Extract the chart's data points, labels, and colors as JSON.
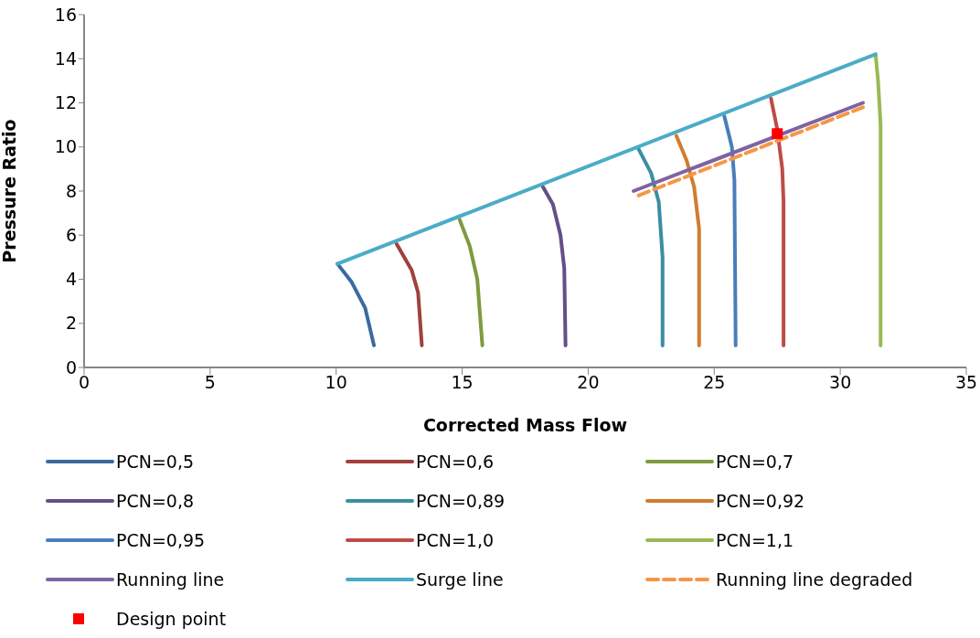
{
  "chart_data": {
    "type": "line",
    "xlabel": "Corrected Mass Flow",
    "ylabel": "Pressure Ratio",
    "xlim": [
      0,
      35
    ],
    "xticks": [
      0,
      5,
      10,
      15,
      20,
      25,
      30,
      35
    ],
    "ylim": [
      0,
      16
    ],
    "yticks": [
      0,
      2,
      4,
      6,
      8,
      10,
      12,
      14,
      16
    ],
    "grid": false,
    "legend": "bottom",
    "marker": "none",
    "line_style": "solid",
    "series": [
      {
        "name": "PCN=0,5",
        "color": "#3c6aa0",
        "x": [
          10.05,
          10.6,
          11.15,
          11.5
        ],
        "values": [
          4.7,
          3.9,
          2.7,
          1.0
        ]
      },
      {
        "name": "PCN=0,6",
        "color": "#a0413e",
        "x": [
          12.4,
          13.0,
          13.25,
          13.4
        ],
        "values": [
          5.6,
          4.4,
          3.4,
          1.0
        ]
      },
      {
        "name": "PCN=0,7",
        "color": "#7f9a3f",
        "x": [
          14.9,
          15.3,
          15.6,
          15.8
        ],
        "values": [
          6.7,
          5.5,
          4.0,
          1.0
        ]
      },
      {
        "name": "PCN=0,8",
        "color": "#654f87",
        "x": [
          18.2,
          18.6,
          18.9,
          19.05,
          19.1
        ],
        "values": [
          8.2,
          7.4,
          6.0,
          4.5,
          1.0
        ]
      },
      {
        "name": "PCN=0,89",
        "color": "#3a8ea3",
        "x": [
          22.0,
          22.5,
          22.8,
          22.95,
          22.95
        ],
        "values": [
          9.9,
          8.8,
          7.5,
          5.0,
          1.0
        ]
      },
      {
        "name": "PCN=0,92",
        "color": "#d07c30",
        "x": [
          23.5,
          23.9,
          24.2,
          24.4,
          24.4
        ],
        "values": [
          10.5,
          9.4,
          8.2,
          6.3,
          1.0
        ]
      },
      {
        "name": "PCN=0,95",
        "color": "#4a7ebb",
        "x": [
          25.4,
          25.7,
          25.8,
          25.85
        ],
        "values": [
          11.4,
          10.0,
          8.5,
          1.0
        ]
      },
      {
        "name": "PCN=1,0",
        "color": "#be4b48",
        "x": [
          27.25,
          27.5,
          27.7,
          27.75,
          27.75
        ],
        "values": [
          12.2,
          10.8,
          9.0,
          7.5,
          1.0
        ]
      },
      {
        "name": "PCN=1,1",
        "color": "#98b954",
        "x": [
          31.4,
          31.5,
          31.6,
          31.6
        ],
        "values": [
          14.2,
          13.0,
          11.0,
          1.0
        ]
      },
      {
        "name": "Running line",
        "color": "#7e63a1",
        "x": [
          21.8,
          30.9
        ],
        "values": [
          8.0,
          12.0
        ]
      },
      {
        "name": "Surge line",
        "color": "#4bacc6",
        "x": [
          10.05,
          31.4
        ],
        "values": [
          4.7,
          14.2
        ]
      },
      {
        "name": "Running line degraded",
        "color": "#f79646",
        "line_style": "dashed",
        "x": [
          22.0,
          30.9
        ],
        "values": [
          7.8,
          11.8
        ]
      },
      {
        "name": "Design point",
        "type": "scatter",
        "marker": "square",
        "color": "#ff0000",
        "x": [
          27.5
        ],
        "values": [
          10.6
        ]
      }
    ]
  }
}
